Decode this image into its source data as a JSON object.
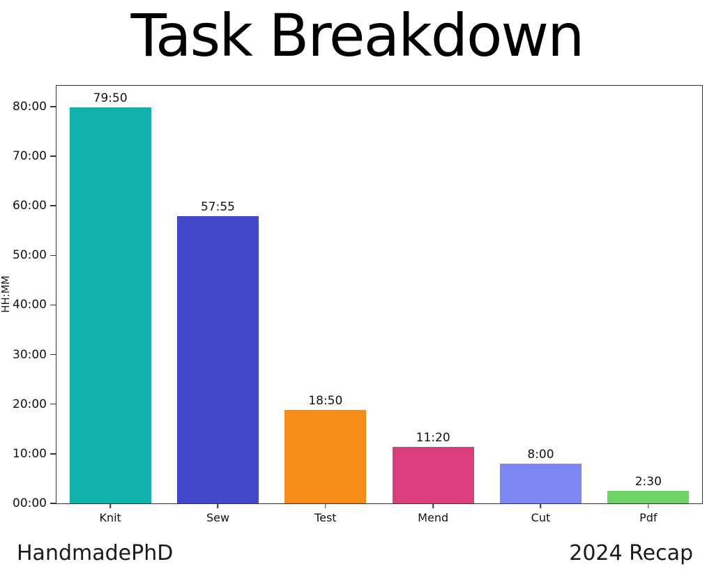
{
  "footer": {
    "left": "HandmadePhD",
    "right": "2024 Recap"
  },
  "chart_data": {
    "type": "bar",
    "title": "Task Breakdown",
    "xlabel": "",
    "ylabel": "HH:MM",
    "categories": [
      "Knit",
      "Sew",
      "Test",
      "Mend",
      "Cut",
      "Pdf"
    ],
    "values_hhmm": [
      "79:50",
      "57:55",
      "18:50",
      "11:20",
      "8:00",
      "2:30"
    ],
    "values_hours": [
      79.833,
      57.917,
      18.833,
      11.333,
      8.0,
      2.5
    ],
    "bar_colors": [
      "#12b2ac",
      "#4149c8",
      "#f68c19",
      "#db3e7d",
      "#7e87f4",
      "#6dd465"
    ],
    "yticks": [
      "00:00",
      "10:00",
      "20:00",
      "30:00",
      "40:00",
      "50:00",
      "60:00",
      "70:00",
      "80:00"
    ],
    "ytick_hours": [
      0,
      10,
      20,
      30,
      40,
      50,
      60,
      70,
      80
    ],
    "ylim": [
      0,
      84.2
    ],
    "grid": false,
    "legend": null,
    "axis_color": "#333333",
    "text_color": "#1a1a1a"
  }
}
